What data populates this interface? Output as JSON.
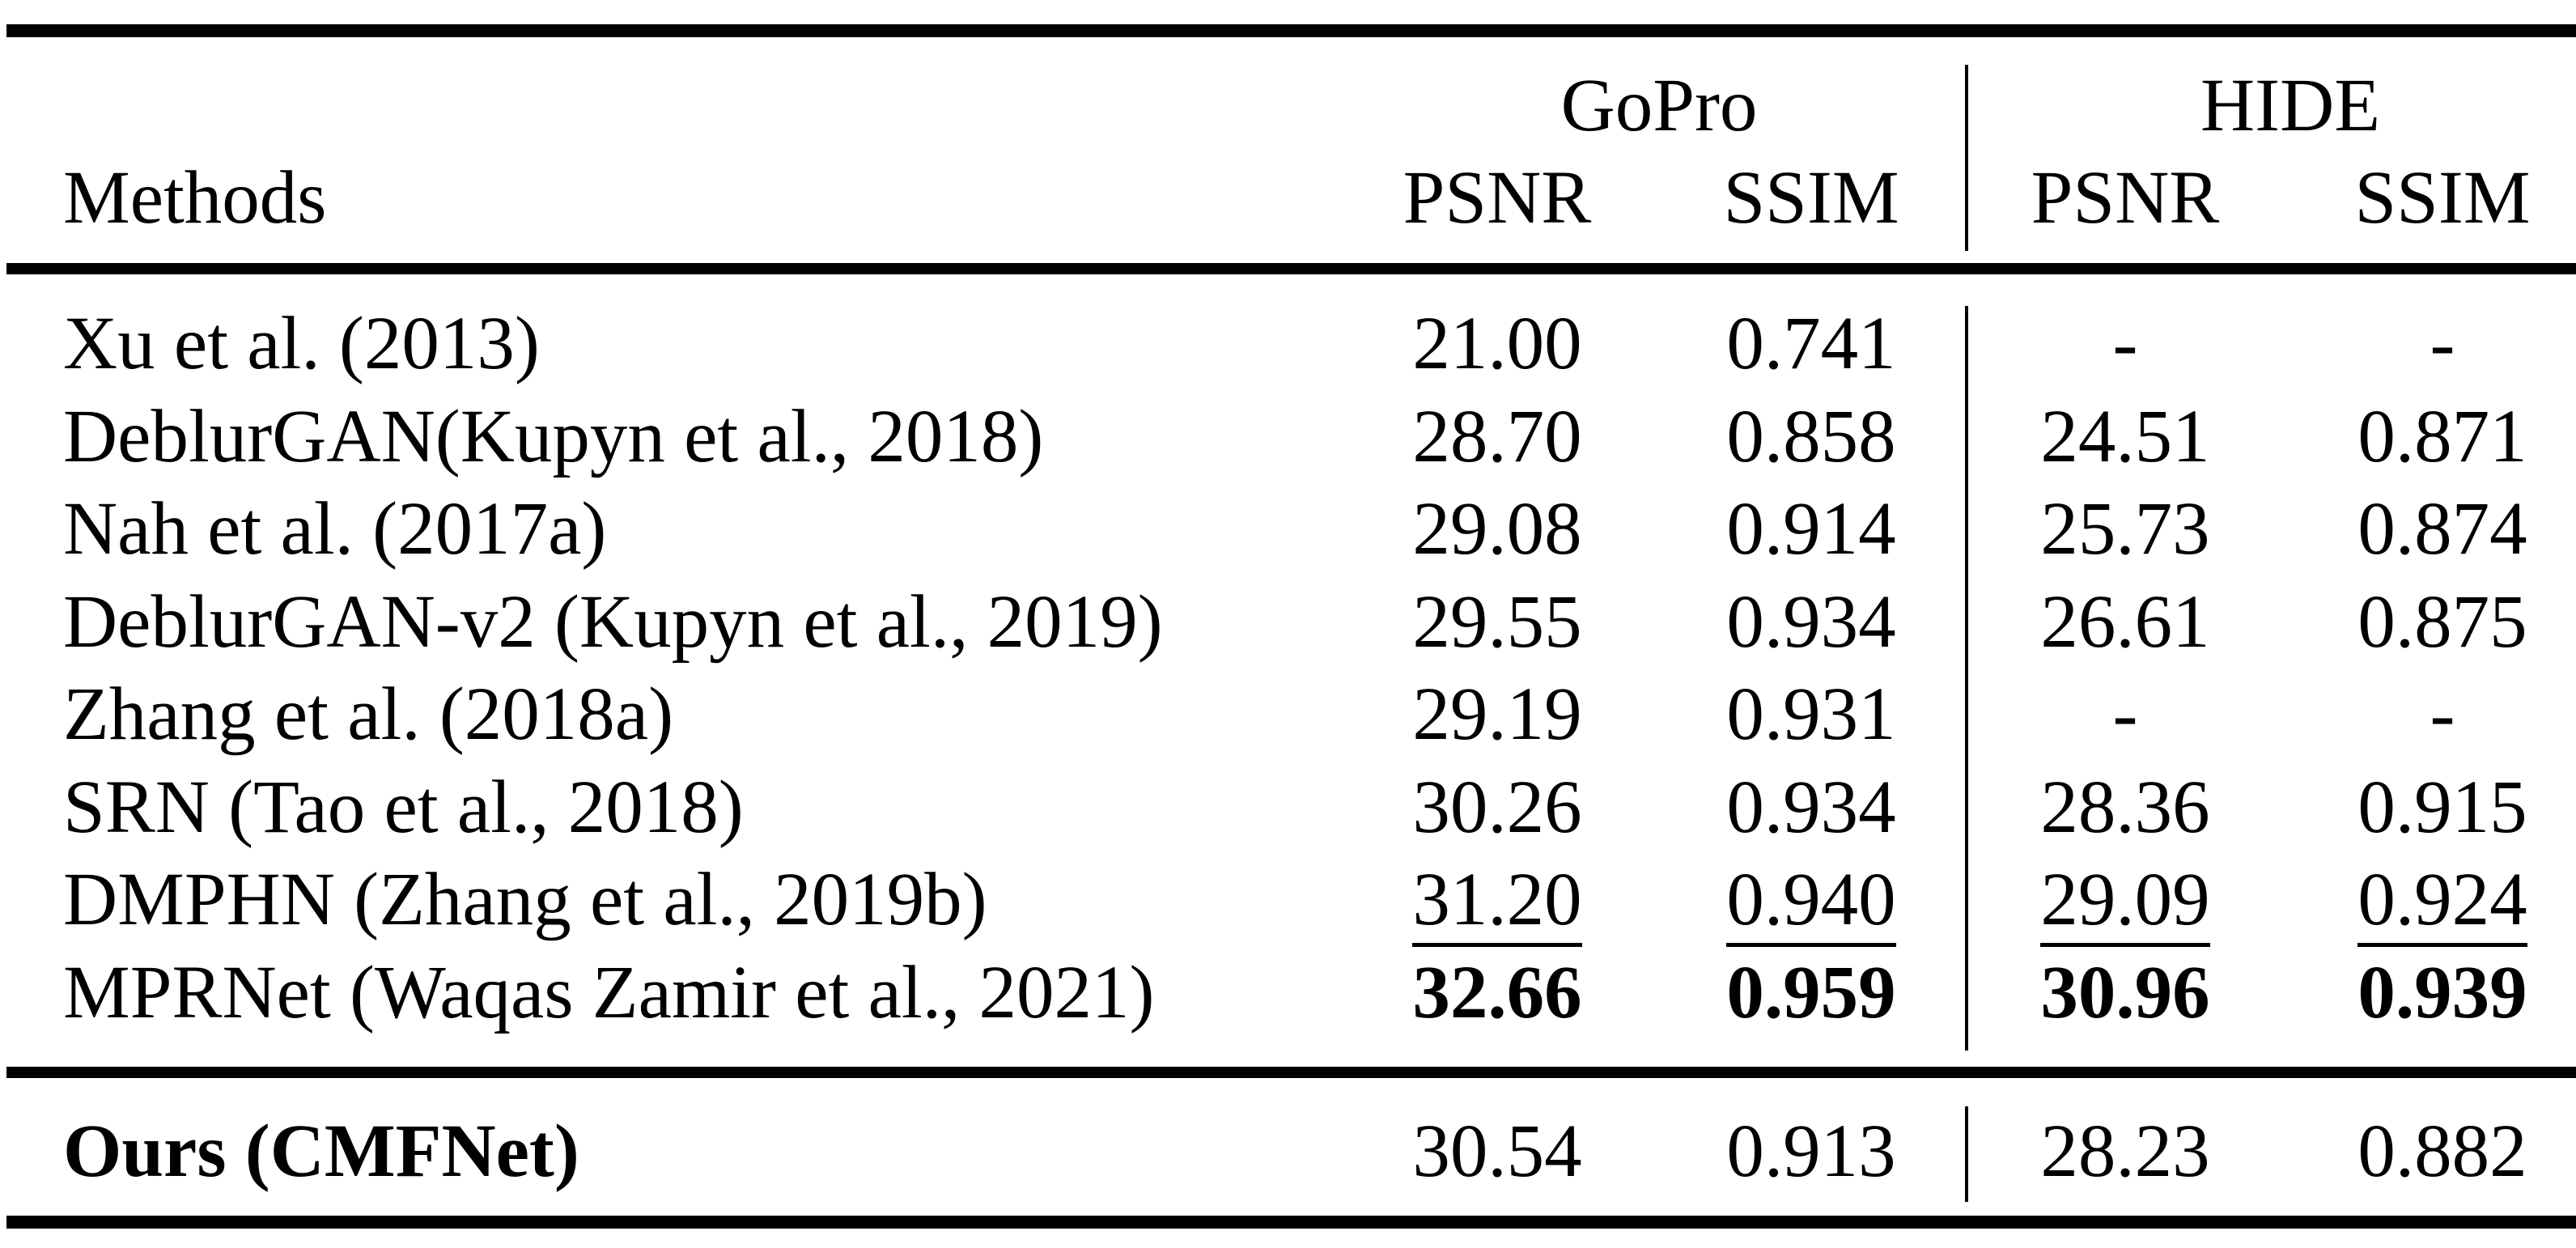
{
  "table": {
    "header": {
      "methods": "Methods",
      "groups": [
        "GoPro",
        "HIDE"
      ],
      "metrics": [
        "PSNR",
        "SSIM",
        "PSNR",
        "SSIM"
      ]
    },
    "rows": [
      {
        "method": "Xu et al. (2013)",
        "values": [
          "21.00",
          "0.741",
          "-",
          "-"
        ]
      },
      {
        "method": "DeblurGAN(Kupyn et al., 2018)",
        "values": [
          "28.70",
          "0.858",
          "24.51",
          "0.871"
        ]
      },
      {
        "method": "Nah et al. (2017a)",
        "values": [
          "29.08",
          "0.914",
          "25.73",
          "0.874"
        ]
      },
      {
        "method": "DeblurGAN-v2 (Kupyn et al., 2019)",
        "values": [
          "29.55",
          "0.934",
          "26.61",
          "0.875"
        ]
      },
      {
        "method": "Zhang et al. (2018a)",
        "values": [
          "29.19",
          "0.931",
          "-",
          "-"
        ]
      },
      {
        "method": "SRN (Tao et al., 2018)",
        "values": [
          "30.26",
          "0.934",
          "28.36",
          "0.915"
        ]
      },
      {
        "method": "DMPHN (Zhang et al., 2019b)",
        "values": [
          "31.20",
          "0.940",
          "29.09",
          "0.924"
        ],
        "style": "underline"
      },
      {
        "method": "MPRNet (Waqas Zamir et al., 2021)",
        "values": [
          "32.66",
          "0.959",
          "30.96",
          "0.939"
        ],
        "style": "bold"
      }
    ],
    "ours": {
      "method": "Ours (CMFNet)",
      "values": [
        "30.54",
        "0.913",
        "28.23",
        "0.882"
      ]
    }
  }
}
